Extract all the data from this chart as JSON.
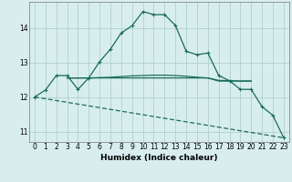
{
  "xlabel": "Humidex (Indice chaleur)",
  "bg_color": "#d8eeee",
  "grid_color": "#b0d0d0",
  "line_color": "#1a6b5a",
  "xlim": [
    -0.5,
    23.5
  ],
  "ylim": [
    10.7,
    14.75
  ],
  "yticks": [
    11,
    12,
    13,
    14
  ],
  "xticks": [
    0,
    1,
    2,
    3,
    4,
    5,
    6,
    7,
    8,
    9,
    10,
    11,
    12,
    13,
    14,
    15,
    16,
    17,
    18,
    19,
    20,
    21,
    22,
    23
  ],
  "line1_x": [
    0,
    1,
    2,
    3,
    4,
    5,
    6,
    7,
    8,
    9,
    10,
    11,
    12,
    13,
    14,
    15,
    16,
    17,
    18,
    19,
    20,
    21,
    22,
    23
  ],
  "line1_y": [
    12.0,
    12.2,
    12.62,
    12.62,
    12.22,
    12.55,
    13.02,
    13.38,
    13.85,
    14.06,
    14.47,
    14.38,
    14.38,
    14.07,
    13.32,
    13.22,
    13.27,
    12.62,
    12.47,
    12.22,
    12.22,
    11.72,
    11.47,
    10.82
  ],
  "line2_x": [
    3,
    4,
    5,
    6,
    7,
    8,
    9,
    10,
    11,
    12,
    13,
    14,
    15,
    16,
    17,
    18,
    19,
    20
  ],
  "line2_y": [
    12.55,
    12.55,
    12.55,
    12.55,
    12.55,
    12.55,
    12.55,
    12.55,
    12.55,
    12.55,
    12.55,
    12.55,
    12.55,
    12.55,
    12.46,
    12.46,
    12.46,
    12.46
  ],
  "line3_x": [
    3,
    4,
    5,
    6,
    7,
    8,
    9,
    10,
    11,
    12,
    13,
    14,
    15,
    16,
    17,
    18,
    19,
    20
  ],
  "line3_y": [
    12.55,
    12.55,
    12.55,
    12.56,
    12.57,
    12.59,
    12.61,
    12.62,
    12.63,
    12.63,
    12.62,
    12.6,
    12.57,
    12.55,
    12.48,
    12.47,
    12.46,
    12.46
  ],
  "line4_x": [
    0,
    23
  ],
  "line4_y": [
    12.0,
    10.82
  ],
  "marker": "+"
}
